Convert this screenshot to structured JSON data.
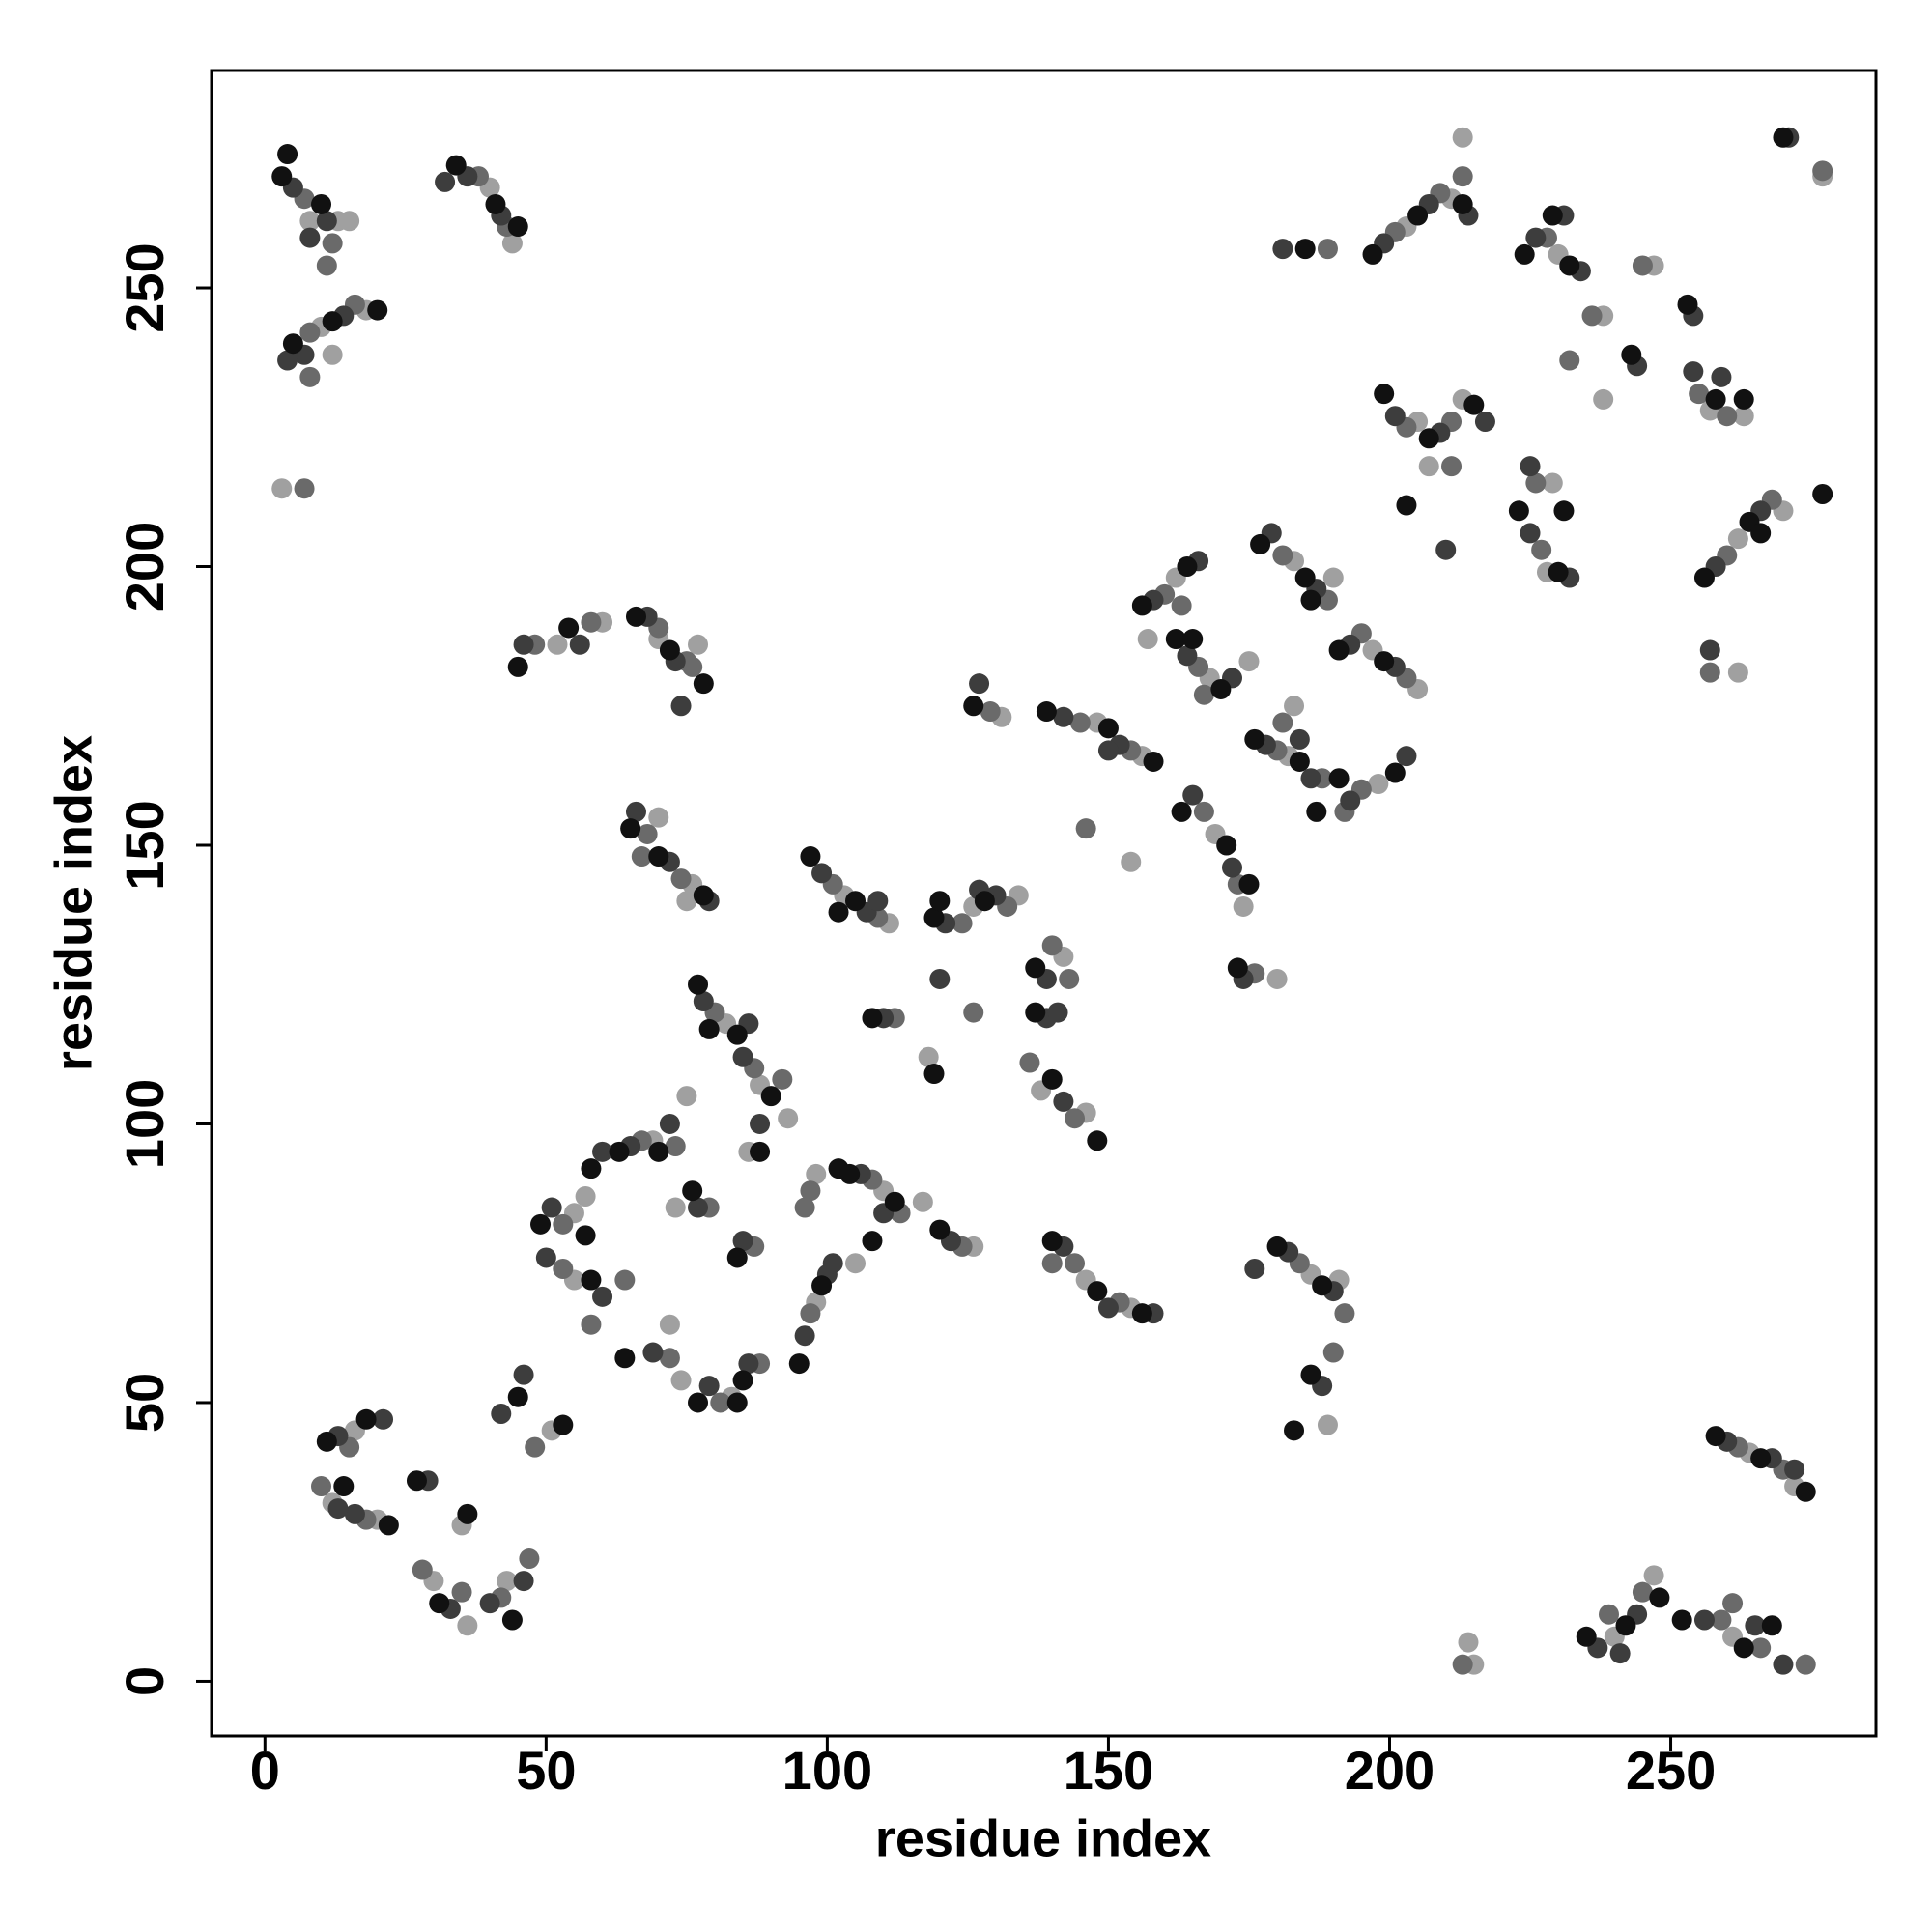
{
  "chart_data": {
    "type": "scatter",
    "x_label": "residue index",
    "y_label": "residue index",
    "xlim": [
      -9.5,
      286.5
    ],
    "ylim": [
      -9.8,
      289
    ],
    "xticks": [
      0,
      50,
      100,
      150,
      200,
      250
    ],
    "yticks": [
      0,
      50,
      100,
      150,
      200,
      250
    ],
    "grid": false,
    "series": [
      {
        "color": "#a0a0a0",
        "x": [
          8,
          13,
          15,
          10,
          18,
          12,
          3,
          40,
          44,
          52,
          60,
          70,
          77,
          70,
          76,
          75,
          103,
          111,
          126,
          134,
          82,
          88,
          93,
          118,
          142,
          138,
          146,
          131,
          148,
          156,
          154,
          162,
          157,
          168,
          175,
          169,
          174,
          180,
          183,
          190,
          182,
          183,
          197,
          205,
          198,
          205,
          213,
          207,
          203,
          211,
          213,
          228,
          229,
          230,
          238,
          238,
          247,
          257,
          263,
          262,
          270,
          262,
          277,
          16,
          12,
          20,
          30,
          35,
          43,
          36,
          51,
          55,
          55,
          57,
          69,
          73,
          75,
          74,
          83,
          72,
          86,
          98,
          98,
          105,
          110,
          117,
          126,
          146,
          154,
          186,
          191,
          189,
          215,
          214,
          240,
          247,
          261,
          264,
          272
        ],
        "values": [
          262,
          262,
          262,
          243,
          246,
          238,
          214,
          268,
          258,
          186,
          190,
          187,
          186,
          155,
          143,
          140,
          141,
          136,
          139,
          141,
          118,
          107,
          101,
          112,
          130,
          106,
          102,
          173,
          172,
          166,
          147,
          198,
          187,
          180,
          183,
          152,
          139,
          126,
          201,
          198,
          166,
          175,
          185,
          178,
          161,
          226,
          230,
          218,
          261,
          266,
          277,
          199,
          215,
          256,
          245,
          230,
          254,
          228,
          227,
          205,
          210,
          181,
          270,
          45,
          32,
          29,
          18,
          28,
          18,
          10,
          45,
          84,
          72,
          87,
          97,
          85,
          105,
          54,
          51,
          64,
          95,
          68,
          91,
          75,
          88,
          86,
          78,
          72,
          67,
          73,
          72,
          46,
          3,
          7,
          8,
          19,
          8,
          41,
          35
        ]
      },
      {
        "color": "#6a6a6a",
        "x": [
          7,
          12,
          11,
          8,
          16,
          8,
          7,
          38,
          43,
          48,
          58,
          70,
          75,
          76,
          68,
          74,
          67,
          101,
          109,
          124,
          132,
          80,
          87,
          92,
          112,
          126,
          140,
          136,
          144,
          143,
          129,
          145,
          154,
          146,
          160,
          163,
          166,
          167,
          167,
          173,
          176,
          181,
          189,
          180,
          188,
          181,
          195,
          203,
          195,
          192,
          203,
          211,
          211,
          201,
          209,
          213,
          189,
          227,
          226,
          228,
          236,
          232,
          245,
          255,
          260,
          260,
          268,
          257,
          277,
          15,
          10,
          18,
          28,
          35,
          42,
          47,
          48,
          53,
          53,
          58,
          64,
          67,
          73,
          79,
          72,
          81,
          88,
          87,
          97,
          97,
          96,
          108,
          113,
          124,
          144,
          152,
          140,
          184,
          192,
          190,
          213,
          239,
          245,
          259,
          266,
          274,
          262,
          270,
          261
        ],
        "values": [
          266,
          258,
          254,
          242,
          247,
          234,
          214,
          270,
          261,
          186,
          190,
          189,
          183,
          182,
          152,
          144,
          148,
          143,
          137,
          136,
          139,
          120,
          110,
          108,
          119,
          120,
          132,
          111,
          101,
          126,
          174,
          172,
          167,
          153,
          195,
          193,
          182,
          177,
          156,
          143,
          127,
          202,
          194,
          167,
          162,
          172,
          188,
          180,
          160,
          156,
          225,
          226,
          218,
          260,
          267,
          270,
          257,
          203,
          215,
          259,
          245,
          237,
          254,
          231,
          227,
          202,
          212,
          181,
          271,
          42,
          35,
          29,
          20,
          16,
          15,
          22,
          42,
          82,
          74,
          64,
          72,
          97,
          96,
          85,
          58,
          50,
          57,
          78,
          66,
          88,
          85,
          90,
          84,
          78,
          75,
          68,
          75,
          75,
          66,
          59,
          3,
          12,
          16,
          11,
          6,
          3,
          42,
          38,
          14
        ]
      },
      {
        "color": "#3d3d3d",
        "x": [
          5,
          11,
          8,
          7,
          14,
          4,
          36,
          42,
          32,
          46,
          56,
          68,
          73,
          74,
          66,
          72,
          79,
          99,
          107,
          109,
          121,
          130,
          127,
          78,
          85,
          86,
          110,
          120,
          139,
          139,
          142,
          141,
          127,
          142,
          152,
          150,
          158,
          166,
          164,
          172,
          165,
          172,
          174,
          179,
          187,
          178,
          186,
          184,
          193,
          201,
          193,
          203,
          201,
          209,
          217,
          210,
          199,
          207,
          214,
          181,
          225,
          232,
          225,
          226,
          234,
          231,
          244,
          254,
          259,
          254,
          258,
          266,
          257,
          271,
          13,
          21,
          16,
          13,
          29,
          33,
          40,
          46,
          46,
          42,
          51,
          50,
          60,
          60,
          65,
          72,
          77,
          69,
          79,
          86,
          85,
          88,
          96,
          100,
          101,
          106,
          110,
          122,
          142,
          150,
          158,
          182,
          190,
          188,
          176,
          237,
          244,
          241,
          256,
          265,
          270,
          260,
          268,
          272
        ],
        "values": [
          268,
          262,
          259,
          238,
          245,
          237,
          270,
          263,
          269,
          186,
          186,
          191,
          183,
          175,
          156,
          147,
          140,
          145,
          138,
          140,
          136,
          141,
          142,
          122,
          112,
          118,
          119,
          126,
          126,
          119,
          104,
          120,
          179,
          173,
          168,
          167,
          194,
          201,
          184,
          180,
          159,
          146,
          126,
          206,
          196,
          168,
          162,
          169,
          186,
          182,
          158,
          166,
          227,
          224,
          226,
          203,
          258,
          265,
          263,
          257,
          206,
          198,
          218,
          259,
          253,
          263,
          236,
          235,
          234,
          245,
          200,
          210,
          185,
          277,
          44,
          47,
          30,
          31,
          36,
          13,
          14,
          18,
          55,
          48,
          85,
          76,
          69,
          95,
          96,
          100,
          85,
          59,
          53,
          57,
          79,
          100,
          62,
          73,
          75,
          91,
          84,
          79,
          78,
          67,
          66,
          77,
          70,
          53,
          74,
          6,
          12,
          5,
          11,
          10,
          3,
          43,
          40,
          38
        ]
      },
      {
        "color": "#111111",
        "x": [
          3,
          10,
          4,
          5,
          12,
          20,
          34,
          41,
          45,
          45,
          54,
          66,
          72,
          78,
          65,
          70,
          78,
          97,
          105,
          102,
          119,
          128,
          120,
          77,
          84,
          90,
          79,
          108,
          119,
          137,
          137,
          140,
          148,
          126,
          139,
          150,
          158,
          156,
          164,
          162,
          170,
          165,
          163,
          171,
          175,
          173,
          177,
          185,
          186,
          176,
          184,
          187,
          191,
          199,
          191,
          201,
          199,
          207,
          215,
          203,
          197,
          205,
          213,
          185,
          223,
          230,
          231,
          224,
          232,
          229,
          243,
          253,
          258,
          263,
          256,
          264,
          266,
          277,
          270,
          11,
          18,
          14,
          22,
          27,
          31,
          36,
          44,
          45,
          53,
          49,
          57,
          58,
          58,
          63,
          70,
          76,
          64,
          77,
          85,
          84,
          84,
          88,
          95,
          99,
          102,
          104,
          112,
          120,
          108,
          140,
          148,
          156,
          180,
          188,
          186,
          183,
          235,
          242,
          248,
          252,
          263,
          268,
          258,
          266,
          274
        ],
        "values": [
          270,
          265,
          274,
          240,
          244,
          246,
          272,
          265,
          261,
          182,
          189,
          191,
          185,
          179,
          153,
          148,
          141,
          148,
          140,
          138,
          137,
          140,
          140,
          125,
          116,
          105,
          117,
          119,
          109,
          128,
          120,
          108,
          97,
          175,
          174,
          171,
          165,
          193,
          200,
          187,
          178,
          187,
          156,
          150,
          143,
          128,
          204,
          198,
          194,
          169,
          165,
          156,
          185,
          183,
          162,
          163,
          231,
          223,
          229,
          211,
          256,
          263,
          265,
          257,
          210,
          199,
          210,
          256,
          254,
          263,
          238,
          247,
          230,
          230,
          198,
          208,
          206,
          213,
          277,
          43,
          47,
          35,
          28,
          36,
          14,
          30,
          11,
          51,
          46,
          82,
          80,
          72,
          92,
          95,
          95,
          88,
          58,
          50,
          54,
          50,
          76,
          95,
          57,
          71,
          92,
          91,
          86,
          81,
          79,
          79,
          70,
          66,
          78,
          71,
          55,
          45,
          8,
          10,
          15,
          11,
          6,
          10,
          44,
          40,
          34
        ]
      }
    ]
  }
}
